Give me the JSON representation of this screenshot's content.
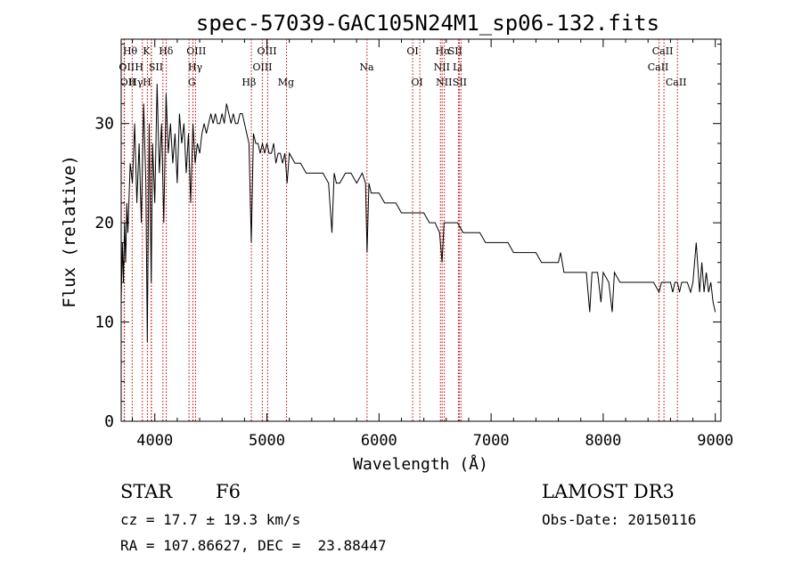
{
  "chart_data": {
    "type": "line",
    "title": "spec-57039-GAC105N24M1_sp06-132.fits",
    "xlabel": "Wavelength (Å)",
    "ylabel": "Flux (relative)",
    "xlim": [
      3700,
      9050
    ],
    "ylim": [
      0,
      38.5
    ],
    "x_ticks": [
      4000,
      5000,
      6000,
      7000,
      8000,
      9000
    ],
    "y_ticks": [
      0,
      10,
      20,
      30
    ],
    "grid": false,
    "series": [
      {
        "name": "flux",
        "x": [
          3700,
          3710,
          3720,
          3730,
          3740,
          3750,
          3760,
          3780,
          3800,
          3820,
          3840,
          3860,
          3880,
          3900,
          3920,
          3933,
          3950,
          3968,
          3980,
          4000,
          4020,
          4040,
          4060,
          4080,
          4101,
          4120,
          4140,
          4160,
          4180,
          4200,
          4220,
          4240,
          4260,
          4280,
          4300,
          4320,
          4340,
          4360,
          4380,
          4400,
          4420,
          4440,
          4460,
          4480,
          4500,
          4520,
          4540,
          4560,
          4580,
          4600,
          4620,
          4640,
          4660,
          4680,
          4700,
          4720,
          4740,
          4760,
          4780,
          4800,
          4820,
          4840,
          4861,
          4880,
          4900,
          4920,
          4940,
          4960,
          4980,
          5000,
          5020,
          5040,
          5060,
          5080,
          5100,
          5120,
          5140,
          5160,
          5180,
          5200,
          5250,
          5300,
          5350,
          5400,
          5450,
          5500,
          5550,
          5580,
          5600,
          5620,
          5650,
          5700,
          5750,
          5800,
          5850,
          5880,
          5893,
          5910,
          5930,
          5960,
          6000,
          6050,
          6100,
          6150,
          6200,
          6250,
          6300,
          6350,
          6400,
          6450,
          6500,
          6540,
          6563,
          6580,
          6600,
          6650,
          6700,
          6750,
          6800,
          6850,
          6900,
          6950,
          7000,
          7050,
          7100,
          7150,
          7200,
          7250,
          7300,
          7350,
          7400,
          7450,
          7500,
          7550,
          7600,
          7620,
          7650,
          7700,
          7750,
          7800,
          7850,
          7880,
          7900,
          7950,
          7980,
          8000,
          8050,
          8080,
          8100,
          8150,
          8200,
          8250,
          8300,
          8350,
          8400,
          8450,
          8498,
          8520,
          8542,
          8560,
          8600,
          8620,
          8640,
          8662,
          8680,
          8700,
          8750,
          8780,
          8800,
          8830,
          8860,
          8880,
          8900,
          8920,
          8940,
          8960,
          8980,
          9000
        ],
        "y": [
          12,
          18,
          14,
          20,
          16,
          22,
          19,
          26,
          24,
          30,
          22,
          28,
          20,
          32,
          24,
          8,
          30,
          14,
          28,
          22,
          34,
          25,
          30,
          20,
          33,
          27,
          30,
          26,
          29,
          24,
          31,
          28,
          30,
          25,
          29,
          22,
          30,
          26,
          28,
          27,
          29,
          30,
          29,
          30,
          31,
          30,
          31,
          30,
          30,
          31,
          30,
          32,
          31,
          30,
          31,
          30,
          30,
          31,
          31,
          30,
          29,
          28,
          18,
          29,
          28,
          28,
          27,
          28,
          27,
          28,
          27,
          27,
          28,
          26,
          27,
          27,
          26,
          27,
          24,
          27,
          26,
          26,
          25,
          25,
          25,
          25,
          24,
          19,
          25,
          24,
          24,
          25,
          25,
          24,
          25,
          24,
          17,
          24,
          23,
          23,
          23,
          22,
          22,
          22,
          21,
          21,
          21,
          21,
          21,
          20,
          20,
          19,
          16,
          20,
          20,
          20,
          20,
          19,
          19,
          19,
          19,
          18,
          18,
          18,
          18,
          18,
          17,
          17,
          17,
          17,
          17,
          16,
          16,
          16,
          16,
          17,
          15,
          15,
          15,
          15,
          15,
          11,
          15,
          15,
          12,
          15,
          14,
          11,
          15,
          14,
          14,
          14,
          14,
          14,
          14,
          14,
          13,
          14,
          14,
          14,
          14,
          13,
          14,
          14,
          13,
          14,
          14,
          13,
          14,
          18,
          13,
          16,
          13,
          15,
          13,
          14,
          12,
          11
        ]
      }
    ],
    "lines": [
      {
        "label": "Hδ",
        "x": 4102,
        "row": 1,
        "label_x": 4100
      },
      {
        "label": "K",
        "x": 3934,
        "row": 1,
        "label_x": 3925
      },
      {
        "label": "Hθ",
        "x": 3798,
        "row": 1,
        "label_x": 3780
      },
      {
        "label": "OIII",
        "x": 4363,
        "row": 1,
        "label_x": 4370
      },
      {
        "label": "OIII",
        "x": 4959,
        "row": 1,
        "label_x": 5000
      },
      {
        "label": "OI",
        "x": 6300,
        "row": 1,
        "label_x": 6300
      },
      {
        "label": "Hα",
        "x": 6563,
        "row": 1,
        "label_x": 6570
      },
      {
        "label": "SII",
        "x": 6716,
        "row": 1,
        "label_x": 6680
      },
      {
        "label": "CaII",
        "x": 8498,
        "row": 1,
        "label_x": 8530
      },
      {
        "label": "OII",
        "x": 3727,
        "row": 2,
        "label_x": 3750
      },
      {
        "label": "H",
        "x": 3968,
        "row": 2,
        "label_x": 3860
      },
      {
        "label": "SII",
        "x": 4072,
        "row": 2,
        "label_x": 4010
      },
      {
        "label": "Hγ",
        "x": 4340,
        "row": 2,
        "label_x": 4360
      },
      {
        "label": "OIII",
        "x": 5007,
        "row": 2,
        "label_x": 4960
      },
      {
        "label": "Na",
        "x": 5893,
        "row": 2,
        "label_x": 5890
      },
      {
        "label": "NII",
        "x": 6548,
        "row": 2,
        "label_x": 6560
      },
      {
        "label": "Li",
        "x": 6708,
        "row": 2,
        "label_x": 6700
      },
      {
        "label": "CaII",
        "x": 8542,
        "row": 2,
        "label_x": 8490
      },
      {
        "label": "OII",
        "x": 3729,
        "row": 3,
        "label_x": 3760
      },
      {
        "label": "Hγ",
        "x": 3889,
        "row": 3,
        "label_x": 3830
      },
      {
        "label": "H",
        "x": 3970,
        "row": 3,
        "label_x": 3930
      },
      {
        "label": "G",
        "x": 4305,
        "row": 3,
        "label_x": 4330
      },
      {
        "label": "Hβ",
        "x": 4861,
        "row": 3,
        "label_x": 4840
      },
      {
        "label": "Mg",
        "x": 5175,
        "row": 3,
        "label_x": 5170
      },
      {
        "label": "OI",
        "x": 6364,
        "row": 3,
        "label_x": 6340
      },
      {
        "label": "NII",
        "x": 6583,
        "row": 3,
        "label_x": 6580
      },
      {
        "label": "SII",
        "x": 6731,
        "row": 3,
        "label_x": 6720
      },
      {
        "label": "CaII",
        "x": 8662,
        "row": 3,
        "label_x": 8650
      }
    ]
  },
  "info": {
    "object_class": "STAR",
    "subclass": "F6",
    "survey": "LAMOST DR3",
    "cz": "cz = 17.7 ± 19.3 km/s",
    "obs_date": "Obs-Date: 20150116",
    "coords": "RA = 107.86627, DEC =  23.88447"
  }
}
